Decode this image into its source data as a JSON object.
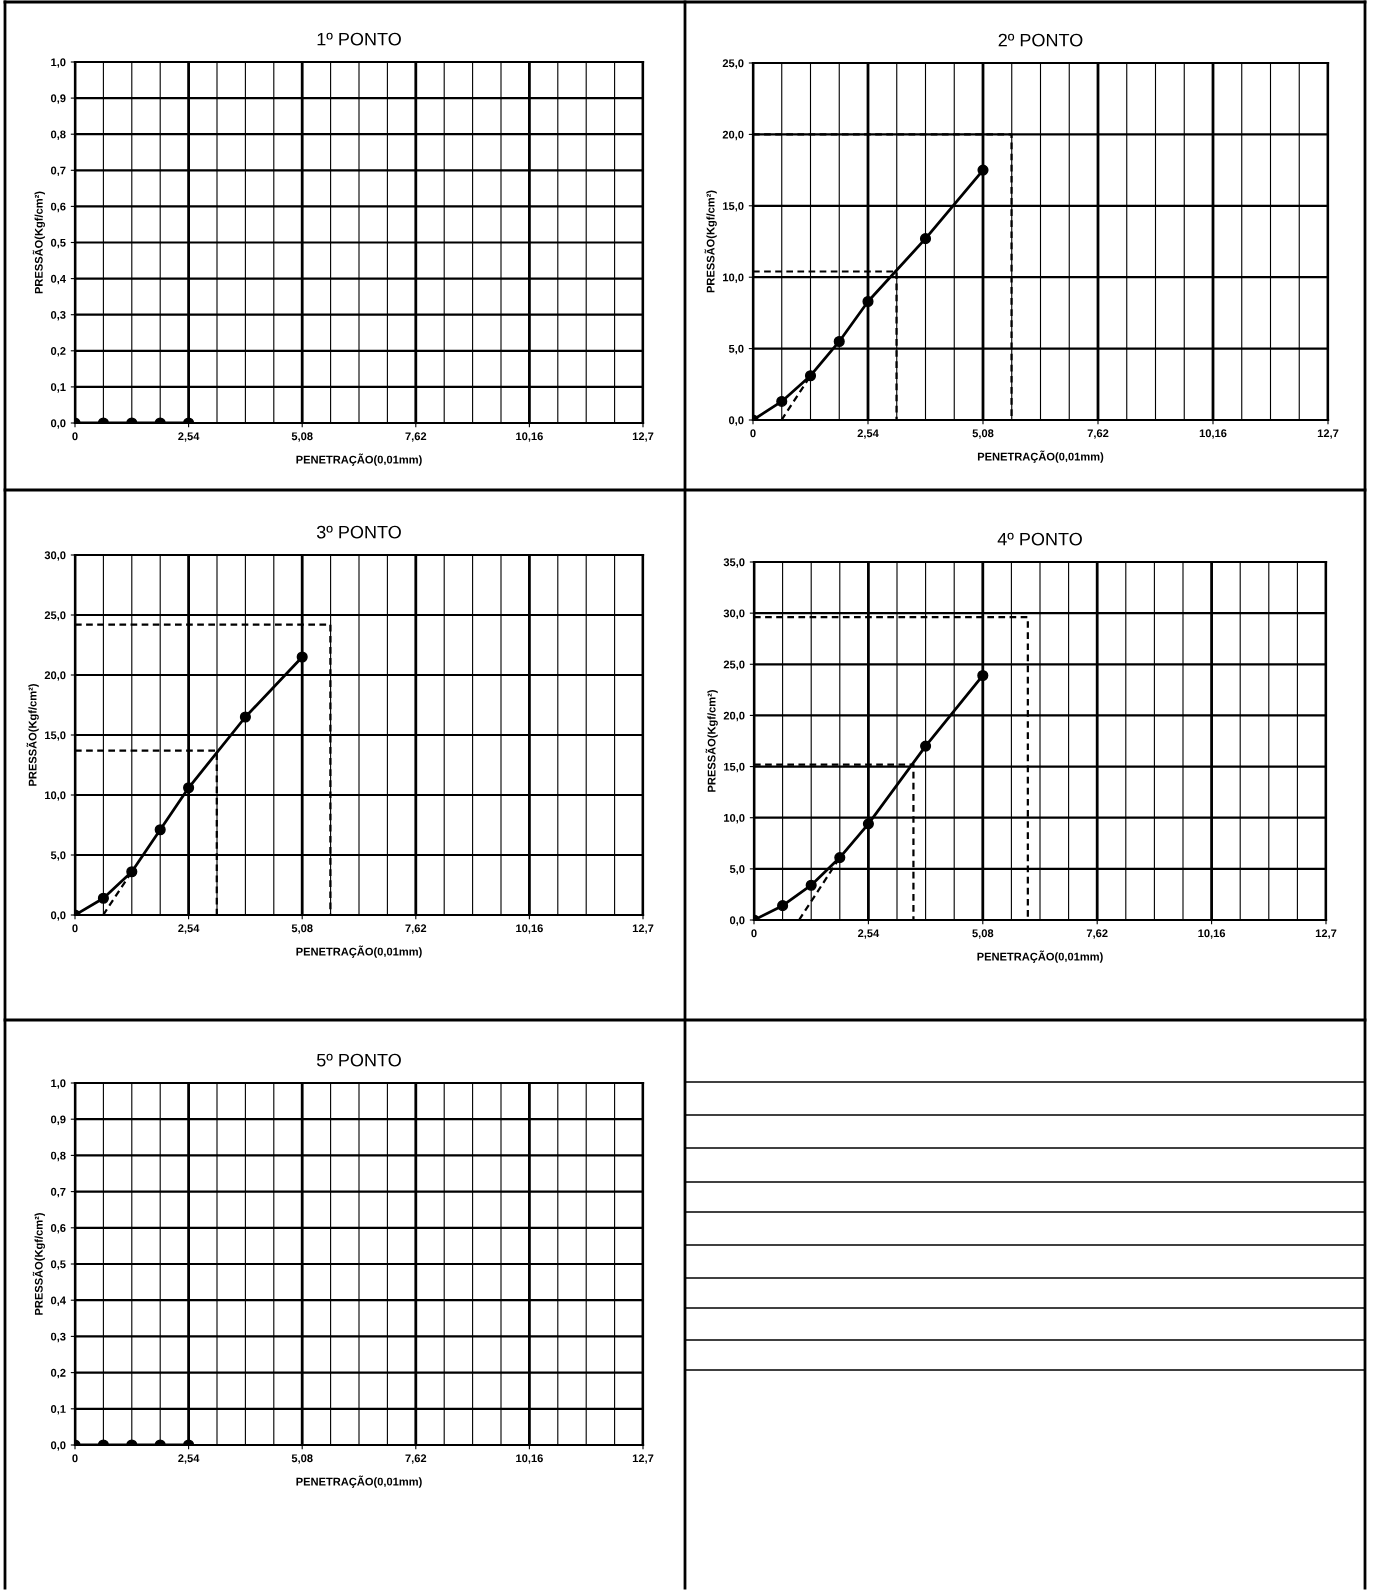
{
  "chart_data": [
    {
      "type": "line",
      "title": "1º PONTO",
      "xlabel": "PENETRAÇÃO(0,01mm)",
      "ylabel": "PRESSÃO(Kgf/cm²)",
      "grid": true,
      "marker": "circle",
      "xlim": [
        0,
        12.7
      ],
      "ylim": [
        0,
        1.0
      ],
      "xticks": [
        0,
        {
          "value": 2.54,
          "label": "2,54"
        },
        {
          "value": 5.08,
          "label": "5,08"
        },
        {
          "value": 7.62,
          "label": "7,62"
        },
        {
          "value": 10.16,
          "label": "10,16"
        },
        {
          "value": 12.7,
          "label": "12,7"
        }
      ],
      "yticks": [
        {
          "value": 0,
          "label": "0,0"
        },
        {
          "value": 0.1,
          "label": "0,1"
        },
        {
          "value": 0.2,
          "label": "0,2"
        },
        {
          "value": 0.3,
          "label": "0,3"
        },
        {
          "value": 0.4,
          "label": "0,4"
        },
        {
          "value": 0.5,
          "label": "0,5"
        },
        {
          "value": 0.6,
          "label": "0,6"
        },
        {
          "value": 0.7,
          "label": "0,7"
        },
        {
          "value": 0.8,
          "label": "0,8"
        },
        {
          "value": 0.9,
          "label": "0,9"
        },
        {
          "value": 1.0,
          "label": "1,0"
        }
      ],
      "series": [
        {
          "color": "#000000",
          "x": [
            0,
            0.635,
            1.27,
            1.905,
            2.54
          ],
          "values": [
            0,
            0,
            0,
            0,
            0
          ]
        }
      ]
    },
    {
      "type": "line",
      "title": "2º PONTO",
      "xlabel": "PENETRAÇÃO(0,01mm)",
      "ylabel": "PRESSÃO(Kgf/cm²)",
      "grid": true,
      "marker": "circle",
      "xlim": [
        0,
        12.7
      ],
      "ylim": [
        0,
        25
      ],
      "xticks": [
        0,
        {
          "value": 2.54,
          "label": "2,54"
        },
        {
          "value": 5.08,
          "label": "5,08"
        },
        {
          "value": 7.62,
          "label": "7,62"
        },
        {
          "value": 10.16,
          "label": "10,16"
        },
        {
          "value": 12.7,
          "label": "12,7"
        }
      ],
      "yticks": [
        {
          "value": 0,
          "label": "0,0"
        },
        {
          "value": 5,
          "label": "5,0"
        },
        {
          "value": 10,
          "label": "10,0"
        },
        {
          "value": 15,
          "label": "15,0"
        },
        {
          "value": 20,
          "label": "20,0"
        },
        {
          "value": 25,
          "label": "25,0"
        }
      ],
      "series": [
        {
          "color": "#000000",
          "x": [
            0,
            0.635,
            1.27,
            1.905,
            2.54,
            3.81,
            5.08
          ],
          "values": [
            0,
            1.3,
            3.1,
            5.5,
            8.3,
            12.7,
            17.5
          ]
        },
        {
          "color": "#000000",
          "marker": "none",
          "line_style": "dashed",
          "x": [
            0.63,
            1.27
          ],
          "values": [
            0,
            3.1
          ]
        },
        {
          "color": "#000000",
          "marker": "none",
          "line_style": "dashed",
          "x": [
            0,
            3.17,
            3.17
          ],
          "values": [
            10.4,
            10.4,
            0
          ]
        },
        {
          "color": "#000000",
          "marker": "none",
          "line_style": "dashed",
          "x": [
            0,
            5.71,
            5.71
          ],
          "values": [
            20,
            20,
            0
          ]
        }
      ]
    },
    {
      "type": "line",
      "title": "3º PONTO",
      "xlabel": "PENETRAÇÃO(0,01mm)",
      "ylabel": "PRESSÃO(Kgf/cm²)",
      "grid": true,
      "marker": "circle",
      "xlim": [
        0,
        12.7
      ],
      "ylim": [
        0,
        30
      ],
      "xticks": [
        0,
        {
          "value": 2.54,
          "label": "2,54"
        },
        {
          "value": 5.08,
          "label": "5,08"
        },
        {
          "value": 7.62,
          "label": "7,62"
        },
        {
          "value": 10.16,
          "label": "10,16"
        },
        {
          "value": 12.7,
          "label": "12,7"
        }
      ],
      "yticks": [
        {
          "value": 0,
          "label": "0,0"
        },
        {
          "value": 5,
          "label": "5,0"
        },
        {
          "value": 10,
          "label": "10,0"
        },
        {
          "value": 15,
          "label": "15,0"
        },
        {
          "value": 20,
          "label": "20,0"
        },
        {
          "value": 25,
          "label": "25,0"
        },
        {
          "value": 30,
          "label": "30,0"
        }
      ],
      "series": [
        {
          "color": "#000000",
          "x": [
            0,
            0.635,
            1.27,
            1.905,
            2.54,
            3.81,
            5.08
          ],
          "values": [
            0,
            1.4,
            3.6,
            7.1,
            10.6,
            16.5,
            21.5
          ]
        },
        {
          "color": "#000000",
          "marker": "none",
          "line_style": "dashed",
          "x": [
            0.63,
            1.27
          ],
          "values": [
            0,
            3.6
          ]
        },
        {
          "color": "#000000",
          "marker": "none",
          "line_style": "dashed",
          "x": [
            0,
            3.17,
            3.17
          ],
          "values": [
            13.7,
            13.7,
            0
          ]
        },
        {
          "color": "#000000",
          "marker": "none",
          "line_style": "dashed",
          "x": [
            0,
            5.71,
            5.71
          ],
          "values": [
            24.2,
            24.2,
            0
          ]
        }
      ]
    },
    {
      "type": "line",
      "title": "4º PONTO",
      "xlabel": "PENETRAÇÃO(0,01mm)",
      "ylabel": "PRESSÃO(Kgf/cm²)",
      "grid": true,
      "marker": "circle",
      "xlim": [
        0,
        12.7
      ],
      "ylim": [
        0,
        35
      ],
      "xticks": [
        0,
        {
          "value": 2.54,
          "label": "2,54"
        },
        {
          "value": 5.08,
          "label": "5,08"
        },
        {
          "value": 7.62,
          "label": "7,62"
        },
        {
          "value": 10.16,
          "label": "10,16"
        },
        {
          "value": 12.7,
          "label": "12,7"
        }
      ],
      "yticks": [
        {
          "value": 0,
          "label": "0,0"
        },
        {
          "value": 5,
          "label": "5,0"
        },
        {
          "value": 10,
          "label": "10,0"
        },
        {
          "value": 15,
          "label": "15,0"
        },
        {
          "value": 20,
          "label": "20,0"
        },
        {
          "value": 25,
          "label": "25,0"
        },
        {
          "value": 30,
          "label": "30,0"
        },
        {
          "value": 35,
          "label": "35,0"
        }
      ],
      "series": [
        {
          "color": "#000000",
          "x": [
            0,
            0.635,
            1.27,
            1.905,
            2.54,
            3.81,
            5.08
          ],
          "values": [
            0,
            1.4,
            3.4,
            6.1,
            9.4,
            17.0,
            23.9
          ]
        },
        {
          "color": "#000000",
          "marker": "none",
          "line_style": "dashed",
          "x": [
            1.0,
            1.905
          ],
          "values": [
            0,
            6.1
          ]
        },
        {
          "color": "#000000",
          "marker": "none",
          "line_style": "dashed",
          "x": [
            0,
            3.54,
            3.54
          ],
          "values": [
            15.2,
            15.2,
            0
          ]
        },
        {
          "color": "#000000",
          "marker": "none",
          "line_style": "dashed",
          "x": [
            0,
            6.08,
            6.08
          ],
          "values": [
            29.6,
            29.6,
            0
          ]
        }
      ]
    },
    {
      "type": "line",
      "title": "5º PONTO",
      "xlabel": "PENETRAÇÃO(0,01mm)",
      "ylabel": "PRESSÃO(Kgf/cm²)",
      "grid": true,
      "marker": "circle",
      "xlim": [
        0,
        12.7
      ],
      "ylim": [
        0,
        1.0
      ],
      "xticks": [
        0,
        {
          "value": 2.54,
          "label": "2,54"
        },
        {
          "value": 5.08,
          "label": "5,08"
        },
        {
          "value": 7.62,
          "label": "7,62"
        },
        {
          "value": 10.16,
          "label": "10,16"
        },
        {
          "value": 12.7,
          "label": "12,7"
        }
      ],
      "yticks": [
        {
          "value": 0,
          "label": "0,0"
        },
        {
          "value": 0.1,
          "label": "0,1"
        },
        {
          "value": 0.2,
          "label": "0,2"
        },
        {
          "value": 0.3,
          "label": "0,3"
        },
        {
          "value": 0.4,
          "label": "0,4"
        },
        {
          "value": 0.5,
          "label": "0,5"
        },
        {
          "value": 0.6,
          "label": "0,6"
        },
        {
          "value": 0.7,
          "label": "0,7"
        },
        {
          "value": 0.8,
          "label": "0,8"
        },
        {
          "value": 0.9,
          "label": "0,9"
        },
        {
          "value": 1.0,
          "label": "1,0"
        }
      ],
      "series": [
        {
          "color": "#000000",
          "x": [
            0,
            0.635,
            1.27,
            1.905,
            2.54
          ],
          "values": [
            0,
            0,
            0,
            0,
            0
          ]
        }
      ]
    }
  ]
}
